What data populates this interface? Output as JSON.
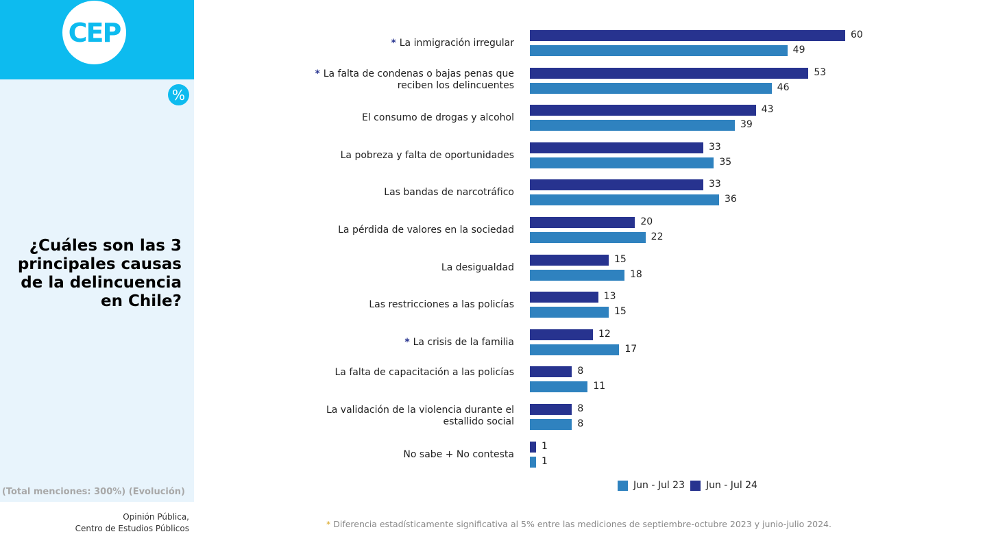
{
  "logo": "CEP",
  "percent_icon": "%",
  "question": "¿Cuáles son las 3 principales causas de la delincuencia en Chile?",
  "note": "(Total menciones: 300%) (Evolución)",
  "source_line1": "Opinión Pública,",
  "source_line2": "Centro de Estudios Públicos",
  "footnote_star": "*",
  "footnote": " Diferencia estadísticamente significativa al 5% entre las mediciones de septiembre-octubre 2023 y junio-julio 2024.",
  "colors": {
    "brand": "#0dbbef",
    "jun_jul_24": "#27338f",
    "jun_jul_23": "#2f82bf"
  },
  "chart_data": {
    "type": "bar",
    "orientation": "horizontal",
    "categories": [
      {
        "label": "La inmigración irregular",
        "star": true
      },
      {
        "label": "La falta de condenas o bajas penas que reciben los delincuentes",
        "star": true
      },
      {
        "label": "El consumo de drogas y alcohol",
        "star": false
      },
      {
        "label": "La pobreza y falta de oportunidades",
        "star": false
      },
      {
        "label": "Las bandas de narcotráfico",
        "star": false
      },
      {
        "label": "La pérdida de valores en la sociedad",
        "star": false
      },
      {
        "label": "La desigualdad",
        "star": false
      },
      {
        "label": "Las restricciones a las policías",
        "star": false
      },
      {
        "label": "La crisis de la familia",
        "star": true
      },
      {
        "label": "La falta de capacitación a las policías",
        "star": false
      },
      {
        "label": "La validación de la violencia durante el estallido social",
        "star": false
      },
      {
        "label": "No sabe + No contesta",
        "star": false
      }
    ],
    "series": [
      {
        "name": "Jun - Jul 24",
        "values": [
          60,
          53,
          43,
          33,
          33,
          20,
          15,
          13,
          12,
          8,
          8,
          1
        ]
      },
      {
        "name": "Jun - Jul 23",
        "values": [
          49,
          46,
          39,
          35,
          36,
          22,
          18,
          15,
          17,
          11,
          8,
          1
        ]
      }
    ],
    "legend": "bottom"
  }
}
